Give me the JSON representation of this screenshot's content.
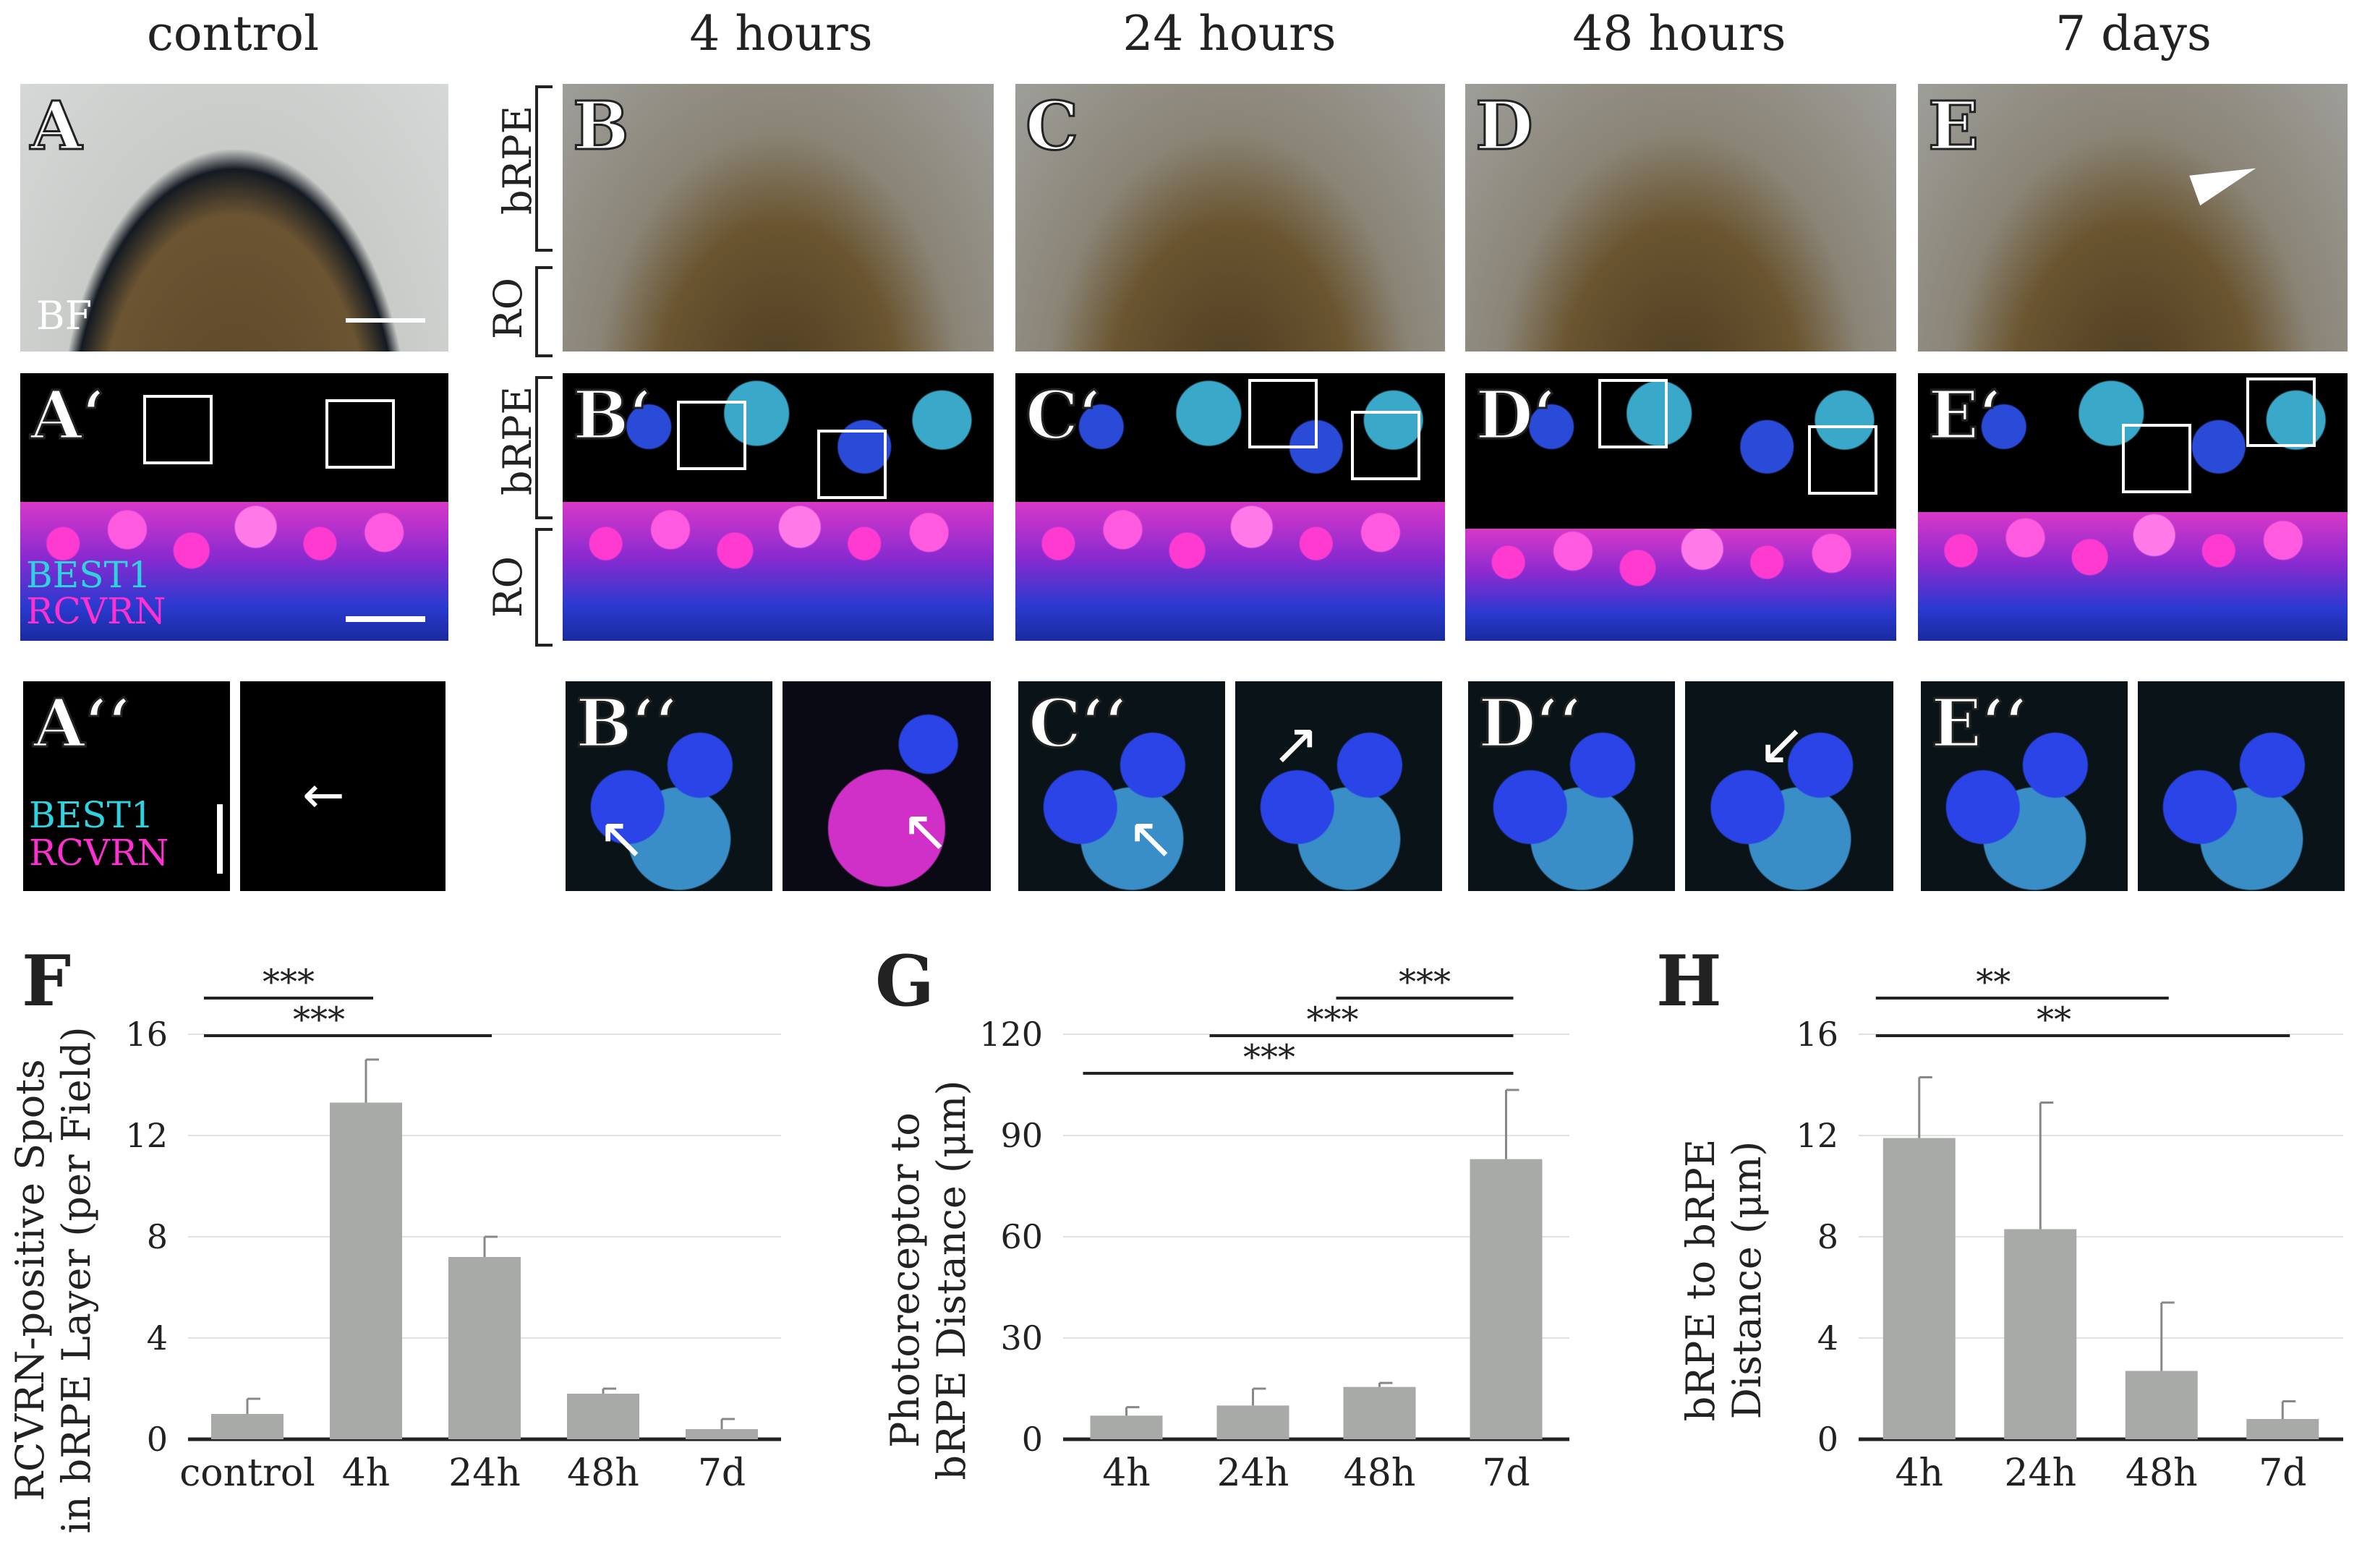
{
  "columns": [
    "control",
    "4 hours",
    "24 hours",
    "48 hours",
    "7 days"
  ],
  "rows": {
    "top": [
      "A",
      "B",
      "C",
      "D",
      "E"
    ],
    "mid": [
      "A‘",
      "B‘",
      "C‘",
      "D‘",
      "E‘"
    ],
    "bot": [
      "A‘‘",
      "B‘‘",
      "C‘‘",
      "D‘‘",
      "E‘‘"
    ]
  },
  "bf_label": "BF",
  "stains": {
    "best1": "BEST1",
    "rcvrn": "RCVRN"
  },
  "side_labels": {
    "brpe": "bRPE",
    "ro": "RO"
  },
  "colors": {
    "best1": "#2fd3e0",
    "rcvrn": "#ff30d0",
    "bar": "#a8aaa8",
    "axis": "#222222"
  },
  "chart_data": [
    {
      "panel": "F",
      "type": "bar",
      "categories": [
        "control",
        "4h",
        "24h",
        "48h",
        "7d"
      ],
      "values": [
        1.0,
        13.3,
        7.2,
        1.8,
        0.4
      ],
      "errors": [
        0.6,
        1.7,
        0.8,
        0.2,
        0.4
      ],
      "ylabel_lines": [
        "RCVRN-positive Spots",
        "in bRPE Layer (per Field)"
      ],
      "ylim": [
        0,
        16
      ],
      "yticks": [
        0,
        4,
        8,
        12,
        16
      ],
      "significance": [
        {
          "from": 0,
          "to": 1,
          "label": "***"
        },
        {
          "from": 0,
          "to": 2,
          "label": "***"
        }
      ]
    },
    {
      "panel": "G",
      "type": "bar",
      "categories": [
        "4h",
        "24h",
        "48h",
        "7d"
      ],
      "values": [
        7,
        10,
        15.5,
        83
      ],
      "errors": [
        2.5,
        5,
        1.2,
        20.5
      ],
      "ylabel_lines": [
        "Photoreceptor to",
        "bRPE Distance (μm)"
      ],
      "ylim": [
        0,
        120
      ],
      "yticks": [
        0,
        30,
        60,
        90,
        120
      ],
      "significance": [
        {
          "from": 2,
          "to": 3,
          "label": "***"
        },
        {
          "from": 1,
          "to": 3,
          "label": "***"
        },
        {
          "from": 0,
          "to": 3,
          "label": "***"
        }
      ]
    },
    {
      "panel": "H",
      "type": "bar",
      "categories": [
        "4h",
        "24h",
        "48h",
        "7d"
      ],
      "values": [
        11.9,
        8.3,
        2.7,
        0.8
      ],
      "errors": [
        2.4,
        5.0,
        2.7,
        0.7
      ],
      "ylabel_lines": [
        "bRPE to bRPE",
        "Distance (μm)"
      ],
      "ylim": [
        0,
        16
      ],
      "yticks": [
        0,
        4,
        8,
        12,
        16
      ],
      "significance": [
        {
          "from": 0,
          "to": 2,
          "label": "**"
        },
        {
          "from": 0,
          "to": 3,
          "label": "**"
        }
      ]
    }
  ]
}
